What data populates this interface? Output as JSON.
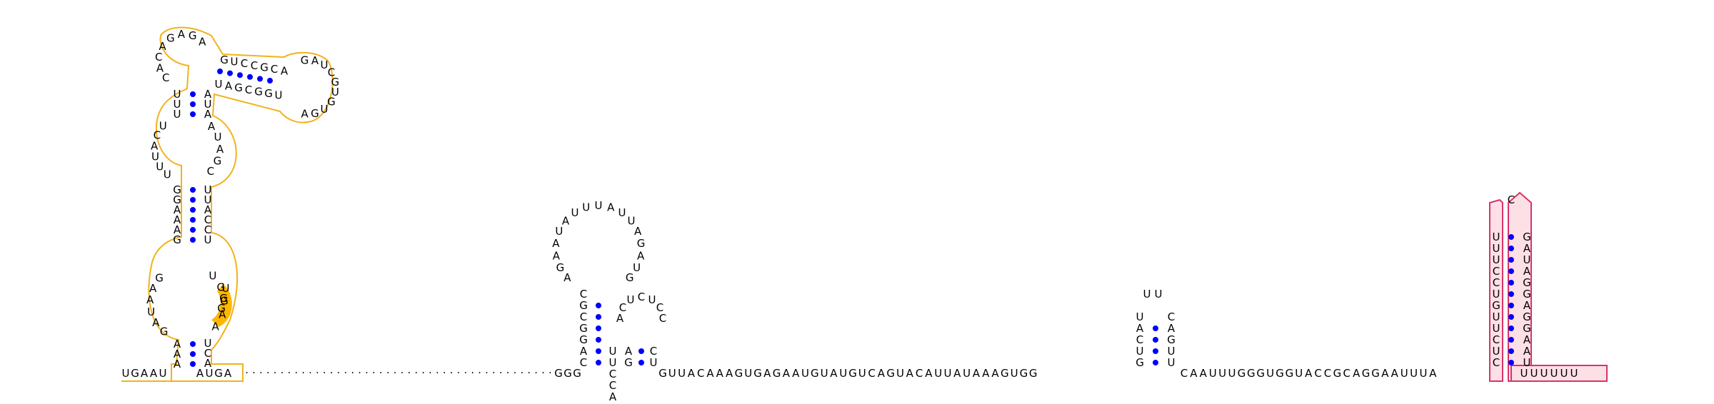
{
  "colors": {
    "background": "#ffffff",
    "nucleotide_text": "#000000",
    "backbone": "#000000",
    "base_pair_dot": "#0000ff",
    "highlight_outline_yellow": "#f2b21a",
    "highlight_fill_orange": "#ffb700",
    "highlight_outline_pink": "#d9336b",
    "highlight_fill_pink": "#fde0e6"
  },
  "rna": {
    "structure_1": {
      "strand_5prime": "UGAAU",
      "stem_a": {
        "left": "AAA",
        "right": "UCA"
      },
      "loop_b": {
        "left": "GAUAAG",
        "right": "UGGAA"
      },
      "stem_c": {
        "left": "GAAAGG",
        "right": "UUACCU"
      },
      "loop_d": {
        "left": "UUUACU",
        "right": "AUAGC"
      },
      "stem_e": {
        "left": "UUU",
        "right": "AUA"
      },
      "loop_f": "CACAGAGA",
      "stem_g": {
        "top": "GUCCGCA",
        "bottom": "UAGCGGU"
      },
      "loop_h": "GAUCGUGUGA",
      "strand_3prime": "AUGA",
      "highlighted_nucleotides": "UGG"
    },
    "linker_dots": ". . . . . . . . . . . . . . . . . . . . . . . . . . . . . . . . . . . . . . . . . . . .",
    "structure_2": {
      "prefix": "GGG",
      "stem_1": {
        "left": "CAGGCGC",
        "right": "UUCCAG"
      },
      "loop_1": "AGAAUAUUUAUUAGAUG",
      "stem_2": {
        "left": "GA",
        "right": "CU"
      },
      "loop_2": "ACUCUCC"
    },
    "linker_sequence": "GUUACAAAGUGAGAAUGUAUGUCAGUACAUUAUAAAGUGG",
    "structure_3": {
      "stem": {
        "left": "GUCAU",
        "right": "CAGUU"
      },
      "loop": "UU"
    },
    "spacer_sequence": "CAAUUUGGGUGGUACCGCAGGAAUUUA",
    "structure_4": {
      "stem": {
        "left": "CUCUUGUCCUUU",
        "right": "GAUAGGAGGAAU"
      },
      "loop": "C"
    },
    "tail_3prime": "UUUUUU"
  }
}
